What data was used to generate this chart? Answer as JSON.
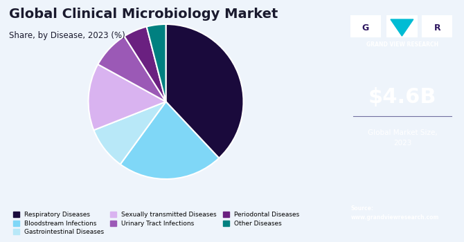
{
  "title": "Global Clinical Microbiology Market",
  "subtitle": "Share, by Disease, 2023 (%)",
  "slices": [
    {
      "label": "Respiratory Diseases",
      "value": 38,
      "color": "#1a0a3c"
    },
    {
      "label": "Bloodstream Infections",
      "value": 22,
      "color": "#7fd7f7"
    },
    {
      "label": "Gastrointestinal Diseases",
      "value": 9,
      "color": "#b8e8f8"
    },
    {
      "label": "Sexually transmitted Diseases",
      "value": 14,
      "color": "#d9b3f0"
    },
    {
      "label": "Urinary Tract Infections",
      "value": 8,
      "color": "#9b59b6"
    },
    {
      "label": "Periodontal Diseases",
      "value": 5,
      "color": "#6a2080"
    },
    {
      "label": "Other Diseases",
      "value": 4,
      "color": "#008080"
    }
  ],
  "sidebar_bg": "#2e1760",
  "sidebar_bottom_bg": "#4a5aaa",
  "market_size": "$4.6B",
  "market_label": "Global Market Size,\n2023",
  "source_label": "Source:\nwww.grandviewresearch.com",
  "chart_bg": "#eef4fb",
  "title_color": "#1a1a2e",
  "legend_cols": 3,
  "sidebar_ratio": 0.265
}
